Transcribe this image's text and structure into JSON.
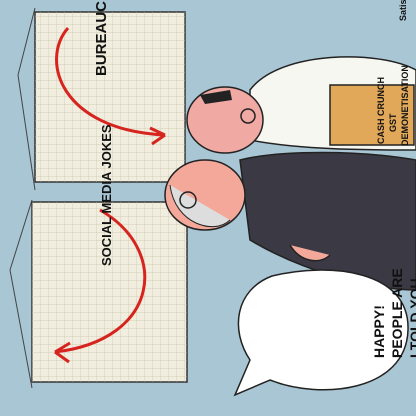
{
  "cartoon": {
    "chart_left_label": "SOCIAL MEDIA JOKES",
    "chart_right_label": "BUREAUCRACY",
    "speech_line_1": "HAPPY!",
    "speech_line_2": "PEOPLE ARE",
    "speech_line_3": "I TOLD YOU,",
    "sign_lines": [
      "DEMONETISATION",
      "GST",
      "CASH CRUNCH"
    ],
    "signature": "Satish"
  },
  "colors": {
    "background": "#a9c6d4",
    "chart_paper": "#f2eedf",
    "grid": "#c9c3ad",
    "arrow": "#d6241e",
    "sign": "#e2a85a"
  }
}
